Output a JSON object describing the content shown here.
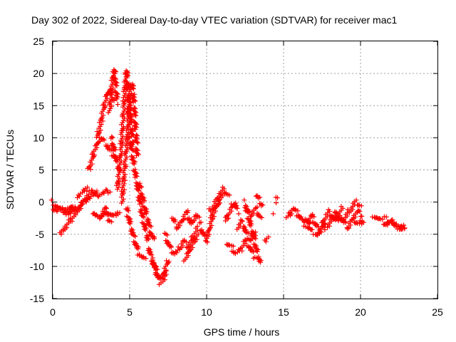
{
  "chart_data": {
    "type": "scatter",
    "title": "Day 302 of 2022, Sidereal Day-to-day VTEC variation (SDTVAR) for receiver mac1",
    "xlabel": "GPS time / hours",
    "ylabel": "SDTVAR / TECUs",
    "xlim": [
      0,
      25
    ],
    "ylim": [
      -15,
      25
    ],
    "xticks": [
      "0",
      "5",
      "10",
      "15",
      "20",
      "25"
    ],
    "yticks": [
      "25",
      "20",
      "15",
      "10",
      "5",
      "0",
      "-5",
      "-10",
      "-15"
    ],
    "grid": true,
    "marker": "plus",
    "series": [
      {
        "name": "SDTVAR",
        "color": "#ff0000",
        "segments": [
          {
            "x": [
              0.0,
              0.2,
              0.4,
              0.6,
              0.8,
              1.0,
              1.2,
              1.4
            ],
            "y": [
              0.0,
              -0.5,
              -1.0,
              -1.2,
              -1.5,
              -1.0,
              -1.2,
              -1.0
            ]
          },
          {
            "x": [
              0.0,
              0.3,
              0.6,
              0.9,
              1.2,
              1.5
            ],
            "y": [
              -1.5,
              -1.0,
              -1.2,
              -1.6,
              -0.8,
              -1.2
            ]
          },
          {
            "x": [
              0.5,
              0.8,
              1.1,
              1.4,
              1.7,
              2.0,
              2.3,
              2.6,
              2.9
            ],
            "y": [
              -5.0,
              -4.0,
              -3.0,
              -2.0,
              -1.0,
              0.0,
              1.0,
              1.5,
              1.8
            ]
          },
          {
            "x": [
              1.0,
              1.4,
              1.8,
              2.2,
              2.6,
              3.0,
              3.4,
              3.7
            ],
            "y": [
              -1.8,
              -1.2,
              -0.5,
              0.5,
              1.0,
              1.2,
              1.5,
              1.8
            ]
          },
          {
            "x": [
              1.6,
              1.9,
              2.2,
              2.5
            ],
            "y": [
              1.0,
              1.5,
              2.0,
              2.0
            ]
          },
          {
            "x": [
              2.3,
              2.5,
              2.7,
              2.9,
              3.1,
              3.3,
              3.5,
              3.7,
              3.9,
              4.1
            ],
            "y": [
              5.0,
              6.0,
              8.0,
              9.0,
              10.0,
              9.5,
              9.0,
              8.0,
              7.5,
              7.0
            ]
          },
          {
            "x": [
              2.9,
              3.1,
              3.3,
              3.5,
              3.7,
              3.9
            ],
            "y": [
              10.0,
              12.0,
              14.5,
              16.5,
              17.5,
              16.0
            ]
          },
          {
            "x": [
              3.7,
              3.8,
              3.9,
              4.0,
              4.1,
              4.2
            ],
            "y": [
              14.0,
              17.0,
              19.0,
              20.5,
              18.0,
              15.5
            ]
          },
          {
            "x": [
              2.6,
              2.8,
              3.0,
              3.2,
              3.4,
              3.6,
              3.8
            ],
            "y": [
              -1.5,
              -2.0,
              -2.5,
              -2.0,
              -1.5,
              -2.5,
              -3.0
            ]
          },
          {
            "x": [
              3.1,
              3.4,
              3.7,
              4.0,
              4.3
            ],
            "y": [
              -2.5,
              -1.0,
              -1.8,
              -2.2,
              -1.5
            ]
          },
          {
            "x": [
              3.8,
              3.9,
              4.0,
              4.1,
              4.2,
              4.3
            ],
            "y": [
              10.0,
              9.0,
              8.0,
              7.0,
              6.0,
              5.0
            ]
          },
          {
            "x": [
              4.2,
              4.3,
              4.4,
              4.5,
              4.6,
              4.7,
              4.8,
              4.9,
              5.0
            ],
            "y": [
              2.0,
              4.0,
              7.0,
              10.0,
              14.0,
              18.0,
              20.5,
              17.0,
              13.0
            ]
          },
          {
            "x": [
              4.5,
              4.6,
              4.7,
              4.8,
              4.9,
              5.0,
              5.1,
              5.2
            ],
            "y": [
              0.0,
              3.0,
              6.0,
              9.0,
              12.0,
              15.0,
              12.0,
              9.0
            ]
          },
          {
            "x": [
              4.9,
              5.0,
              5.1,
              5.2,
              5.3,
              5.4,
              5.5
            ],
            "y": [
              14.0,
              16.0,
              18.5,
              18.0,
              15.0,
              11.0,
              7.0
            ]
          },
          {
            "x": [
              5.0,
              5.2,
              5.4,
              5.6,
              5.8,
              6.0,
              6.2
            ],
            "y": [
              10.0,
              7.0,
              4.0,
              1.0,
              -2.0,
              -4.0,
              -6.0
            ]
          },
          {
            "x": [
              4.8,
              5.0,
              5.2,
              5.4,
              5.6,
              5.8,
              6.0
            ],
            "y": [
              -1.0,
              -3.0,
              -5.0,
              -6.5,
              -8.0,
              -8.5,
              -9.0
            ]
          },
          {
            "x": [
              5.6,
              5.8,
              6.0,
              6.2,
              6.4,
              6.6
            ],
            "y": [
              3.0,
              1.0,
              -1.0,
              -3.0,
              -5.0,
              -6.0
            ]
          },
          {
            "x": [
              6.2,
              6.4,
              6.6,
              6.8,
              7.0,
              7.2,
              7.4
            ],
            "y": [
              -7.0,
              -8.5,
              -10.0,
              -11.5,
              -12.5,
              -12.0,
              -11.0
            ]
          },
          {
            "x": [
              6.5,
              6.7,
              6.9,
              7.1,
              7.3,
              7.5
            ],
            "y": [
              -9.0,
              -10.5,
              -11.5,
              -12.0,
              -10.5,
              -9.0
            ]
          },
          {
            "x": [
              7.3,
              7.6,
              7.9,
              8.2,
              8.5,
              8.8,
              9.1,
              9.4
            ],
            "y": [
              -5.0,
              -7.0,
              -8.0,
              -7.5,
              -6.0,
              -7.0,
              -5.5,
              -4.0
            ]
          },
          {
            "x": [
              7.8,
              8.1,
              8.4,
              8.7,
              9.0,
              9.3,
              9.6
            ],
            "y": [
              -2.5,
              -4.0,
              -3.0,
              -1.5,
              -3.5,
              -2.0,
              -3.0
            ]
          },
          {
            "x": [
              8.6,
              8.8,
              9.0,
              9.2,
              9.4
            ],
            "y": [
              -9.0,
              -8.0,
              -7.0,
              -6.0,
              -5.0
            ]
          },
          {
            "x": [
              9.6,
              9.8,
              10.0,
              10.2,
              10.4,
              10.6,
              10.8,
              11.0
            ],
            "y": [
              -4.0,
              -5.0,
              -6.0,
              -4.0,
              -2.0,
              -1.0,
              0.0,
              1.0
            ]
          },
          {
            "x": [
              10.2,
              10.5,
              10.8,
              11.1,
              11.4
            ],
            "y": [
              -1.5,
              -0.5,
              1.0,
              2.0,
              1.0
            ]
          },
          {
            "x": [
              11.2,
              11.4,
              11.6,
              11.8,
              12.0
            ],
            "y": [
              -3.0,
              -2.0,
              -1.0,
              0.0,
              -1.5
            ]
          },
          {
            "x": [
              11.3,
              11.6,
              11.9,
              12.2,
              12.5,
              12.8,
              13.1
            ],
            "y": [
              -6.5,
              -7.0,
              -8.0,
              -7.5,
              -6.0,
              -7.0,
              -8.5
            ]
          },
          {
            "x": [
              12.0,
              12.3,
              12.6,
              12.9,
              13.2
            ],
            "y": [
              -4.0,
              -3.0,
              -5.0,
              -6.0,
              -4.5
            ]
          },
          {
            "x": [
              12.5,
              12.7,
              12.9,
              13.1,
              13.3,
              13.5
            ],
            "y": [
              0.0,
              -2.0,
              -4.0,
              -6.0,
              -8.0,
              -9.5
            ]
          },
          {
            "x": [
              12.6,
              12.9,
              13.2,
              13.5
            ],
            "y": [
              -1.5,
              -2.0,
              -1.0,
              -2.5
            ]
          },
          {
            "x": [
              13.2,
              13.4,
              13.6
            ],
            "y": [
              1.0,
              0.5,
              -0.5
            ]
          },
          {
            "x": [
              13.8,
              14.0
            ],
            "y": [
              -6.0,
              -5.5
            ]
          },
          {
            "x": [
              14.3
            ],
            "y": [
              -1.5
            ]
          },
          {
            "x": [
              14.5,
              14.6
            ],
            "y": [
              0.5,
              0.2
            ]
          },
          {
            "x": [
              15.2,
              15.4,
              15.6,
              15.8,
              16.0
            ],
            "y": [
              -2.5,
              -2.0,
              -1.0,
              -1.5,
              -2.0
            ]
          },
          {
            "x": [
              16.0,
              16.2,
              16.4,
              16.6,
              16.8,
              17.0,
              17.2
            ],
            "y": [
              -2.0,
              -3.0,
              -2.5,
              -3.5,
              -2.0,
              -3.0,
              -4.0
            ]
          },
          {
            "x": [
              16.4,
              16.8,
              17.2,
              17.6
            ],
            "y": [
              -3.5,
              -4.5,
              -5.0,
              -4.0
            ]
          },
          {
            "x": [
              17.2,
              17.4,
              17.6,
              17.8,
              18.0,
              18.2,
              18.4,
              18.6,
              18.8
            ],
            "y": [
              -5.0,
              -4.5,
              -3.0,
              -2.0,
              -1.5,
              -2.5,
              -3.0,
              -2.0,
              -1.0
            ]
          },
          {
            "x": [
              17.6,
              17.9,
              18.2,
              18.5,
              18.8,
              19.1,
              19.4,
              19.7,
              20.0
            ],
            "y": [
              -4.0,
              -3.5,
              -2.5,
              -2.0,
              -3.0,
              -2.0,
              -1.0,
              0.0,
              -0.5
            ]
          },
          {
            "x": [
              18.3,
              18.6,
              18.9,
              19.2,
              19.5,
              19.8,
              20.1
            ],
            "y": [
              -1.5,
              -2.5,
              -3.0,
              -4.0,
              -2.5,
              -1.5,
              -2.0
            ]
          },
          {
            "x": [
              19.6,
              19.9,
              20.2
            ],
            "y": [
              -3.0,
              -3.5,
              -2.8
            ]
          },
          {
            "x": [
              20.8,
              21.1,
              21.4,
              21.7,
              22.0,
              22.3,
              22.6,
              22.9
            ],
            "y": [
              -2.0,
              -2.5,
              -3.0,
              -3.5,
              -3.0,
              -3.5,
              -4.0,
              -3.8
            ]
          },
          {
            "x": [
              21.6,
              21.9,
              22.2,
              22.5,
              22.8
            ],
            "y": [
              -2.5,
              -3.0,
              -3.5,
              -4.0,
              -4.2
            ]
          }
        ]
      }
    ]
  }
}
